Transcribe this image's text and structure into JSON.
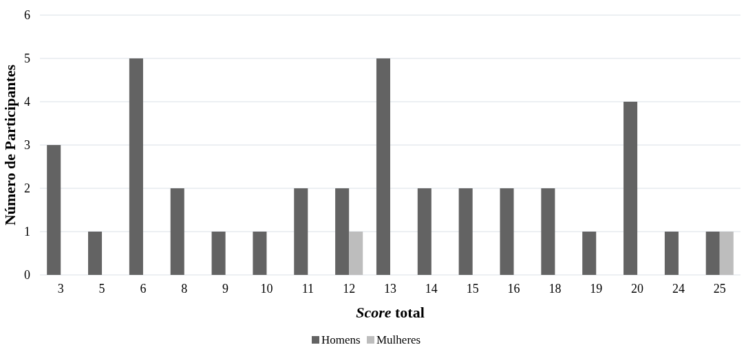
{
  "chart_data": {
    "type": "bar",
    "xlabel": "Score total",
    "ylabel": "Número de Participantes",
    "categories": [
      "3",
      "5",
      "6",
      "8",
      "9",
      "10",
      "11",
      "12",
      "13",
      "14",
      "15",
      "16",
      "18",
      "19",
      "20",
      "24",
      "25"
    ],
    "series": [
      {
        "name": "Homens",
        "color": "#636363",
        "values": [
          3,
          1,
          5,
          2,
          1,
          1,
          2,
          2,
          5,
          2,
          2,
          2,
          2,
          1,
          4,
          1,
          1
        ]
      },
      {
        "name": "Mulheres",
        "color": "#bdbdbd",
        "values": [
          0,
          0,
          0,
          0,
          0,
          0,
          0,
          1,
          0,
          0,
          0,
          0,
          0,
          0,
          0,
          0,
          1
        ]
      }
    ],
    "ylim": [
      0,
      6
    ],
    "yticks": [
      0,
      1,
      2,
      3,
      4,
      5,
      6
    ],
    "grid": "y",
    "legend": "bottom"
  }
}
